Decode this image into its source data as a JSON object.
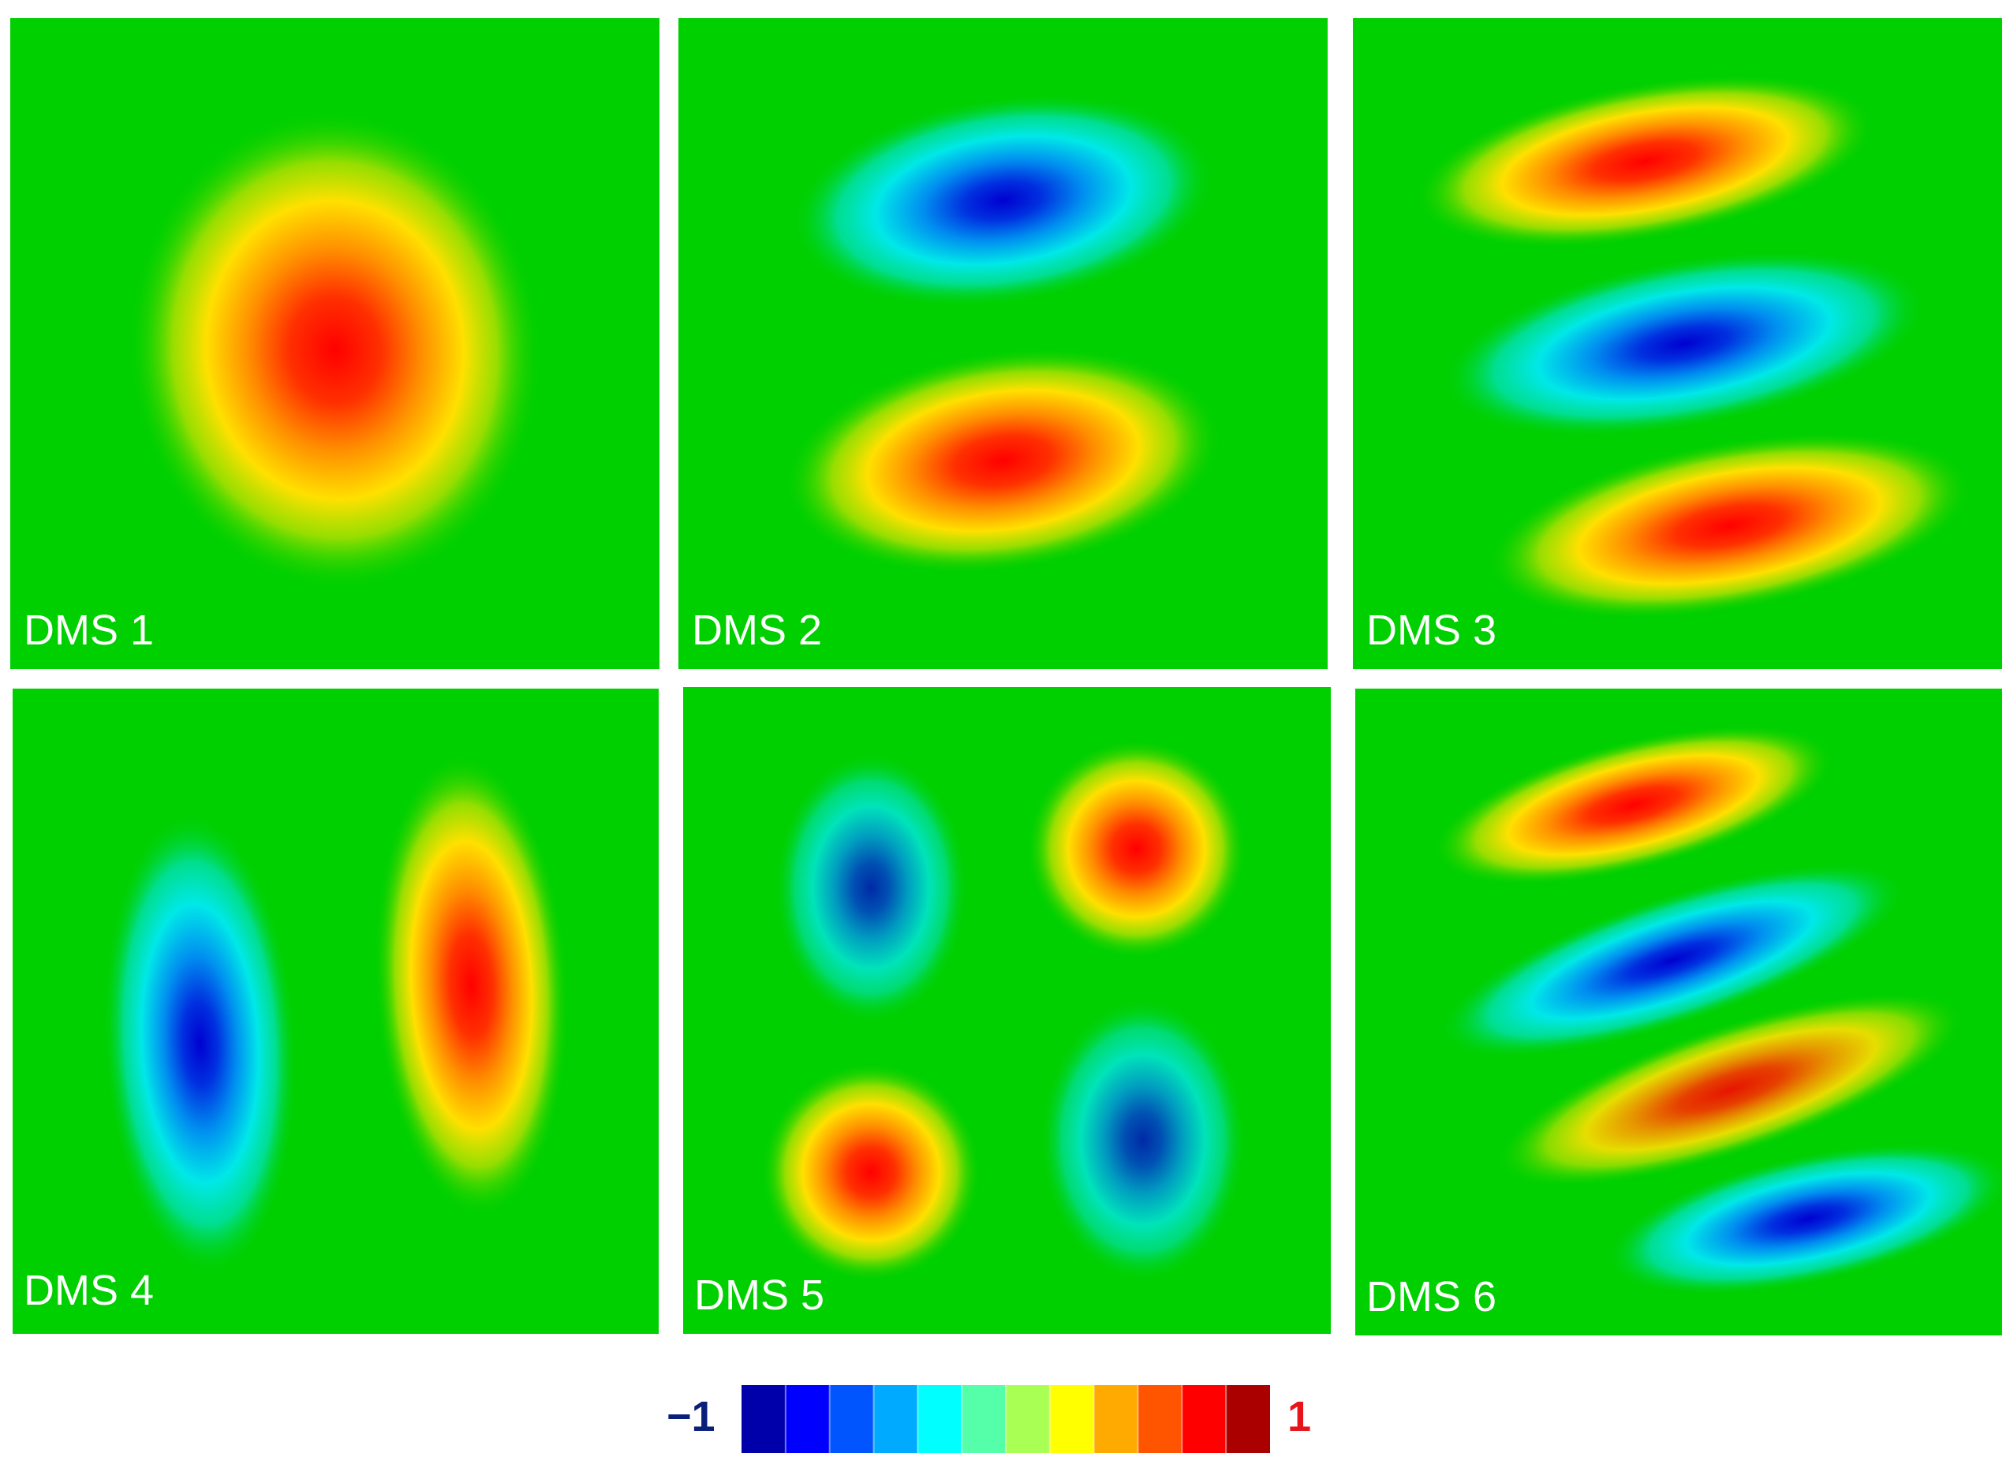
{
  "colors": {
    "background_field": "#00d000",
    "positive": "#ff0000",
    "negative": "#0000d0",
    "label_text": "#ffffff",
    "colorbar_min_label": "#0a1f7a",
    "colorbar_max_label": "#e8141c"
  },
  "chart_data": {
    "type": "heatmap",
    "panels": [
      {
        "label": "DMS 1",
        "lobes": [
          {
            "cx": 0.5,
            "cy": 0.51,
            "rx": 0.32,
            "ry": 0.37,
            "angle": -5,
            "sign": 1,
            "amp": 1.0
          }
        ]
      },
      {
        "label": "DMS 2",
        "lobes": [
          {
            "cx": 0.5,
            "cy": 0.28,
            "rx": 0.33,
            "ry": 0.16,
            "angle": -8,
            "sign": -1,
            "amp": 1.0
          },
          {
            "cx": 0.5,
            "cy": 0.68,
            "rx": 0.34,
            "ry": 0.17,
            "angle": -8,
            "sign": 1,
            "amp": 1.0
          }
        ]
      },
      {
        "label": "DMS 3",
        "lobes": [
          {
            "cx": 0.45,
            "cy": 0.22,
            "rx": 0.36,
            "ry": 0.12,
            "angle": -10,
            "sign": 1,
            "amp": 1.0
          },
          {
            "cx": 0.51,
            "cy": 0.5,
            "rx": 0.38,
            "ry": 0.13,
            "angle": -10,
            "sign": -1,
            "amp": 1.0
          },
          {
            "cx": 0.58,
            "cy": 0.78,
            "rx": 0.38,
            "ry": 0.13,
            "angle": -10,
            "sign": 1,
            "amp": 1.0
          }
        ]
      },
      {
        "label": "DMS 4",
        "lobes": [
          {
            "cx": 0.29,
            "cy": 0.55,
            "rx": 0.15,
            "ry": 0.36,
            "angle": -3,
            "sign": -1,
            "amp": 1.0
          },
          {
            "cx": 0.71,
            "cy": 0.46,
            "rx": 0.15,
            "ry": 0.36,
            "angle": -3,
            "sign": 1,
            "amp": 1.0
          }
        ]
      },
      {
        "label": "DMS 5",
        "lobes": [
          {
            "cx": 0.29,
            "cy": 0.31,
            "rx": 0.15,
            "ry": 0.21,
            "angle": 0,
            "sign": -1,
            "amp": 0.8
          },
          {
            "cx": 0.7,
            "cy": 0.25,
            "rx": 0.17,
            "ry": 0.17,
            "angle": 0,
            "sign": 1,
            "amp": 1.0
          },
          {
            "cx": 0.29,
            "cy": 0.75,
            "rx": 0.17,
            "ry": 0.17,
            "angle": 0,
            "sign": 1,
            "amp": 1.0
          },
          {
            "cx": 0.71,
            "cy": 0.7,
            "rx": 0.16,
            "ry": 0.22,
            "angle": 0,
            "sign": -1,
            "amp": 0.8
          }
        ]
      },
      {
        "label": "DMS 6",
        "lobes": [
          {
            "cx": 0.43,
            "cy": 0.18,
            "rx": 0.32,
            "ry": 0.1,
            "angle": -14,
            "sign": 1,
            "amp": 1.0
          },
          {
            "cx": 0.49,
            "cy": 0.42,
            "rx": 0.38,
            "ry": 0.1,
            "angle": -18,
            "sign": -1,
            "amp": 1.0
          },
          {
            "cx": 0.58,
            "cy": 0.62,
            "rx": 0.38,
            "ry": 0.1,
            "angle": -18,
            "sign": 1,
            "amp": 0.9
          },
          {
            "cx": 0.7,
            "cy": 0.82,
            "rx": 0.32,
            "ry": 0.1,
            "angle": -12,
            "sign": -1,
            "amp": 1.0
          }
        ]
      }
    ],
    "colorbar": {
      "min_label": "−1",
      "max_label": "1",
      "range": [
        -1,
        1
      ],
      "steps": 12,
      "colormap": "jet"
    }
  }
}
